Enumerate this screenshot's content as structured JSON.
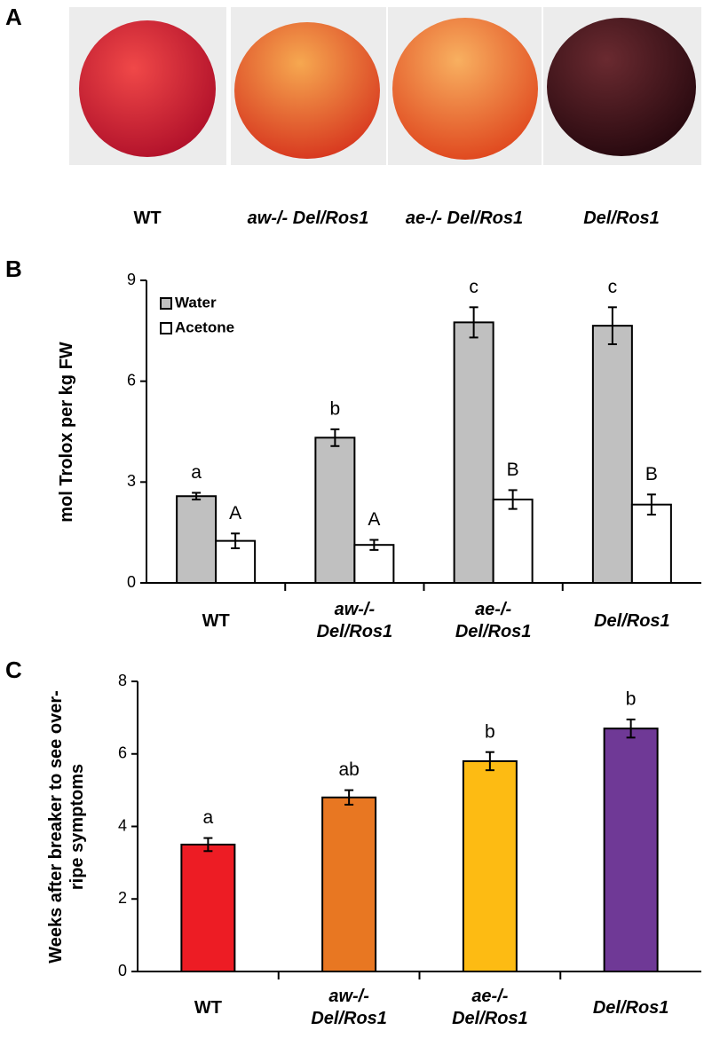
{
  "panel_labels": [
    "A",
    "B",
    "C"
  ],
  "fruit_photos": {
    "labels": [
      "WT",
      "aw-/- Del/Ros1",
      "ae-/- Del/Ros1",
      "Del/Ros1"
    ]
  },
  "chart_data": [
    {
      "type": "bar",
      "ylabel": "mol Trolox per kg FW",
      "categories": [
        "WT",
        "aw-/- Del/Ros1",
        "ae-/- Del/Ros1",
        "Del/Ros1"
      ],
      "series": [
        {
          "name": "Water",
          "color": "#c0c0c0",
          "values": [
            2.58,
            4.32,
            7.75,
            7.65
          ],
          "errors": [
            0.1,
            0.25,
            0.45,
            0.55
          ],
          "labels": [
            "a",
            "b",
            "c",
            "c"
          ]
        },
        {
          "name": "Acetone",
          "color": "#ffffff",
          "values": [
            1.25,
            1.13,
            2.48,
            2.33
          ],
          "errors": [
            0.22,
            0.15,
            0.28,
            0.3
          ],
          "labels": [
            "A",
            "A",
            "B",
            "B"
          ]
        }
      ],
      "ylim": [
        0,
        9
      ],
      "yticks": [
        0,
        3,
        6,
        9
      ],
      "legend": "upper left"
    },
    {
      "type": "bar",
      "ylabel": "Weeks after breaker to see over-ripe symptoms",
      "categories": [
        "WT",
        "aw-/- Del/Ros1",
        "ae-/- Del/Ros1",
        "Del/Ros1"
      ],
      "values": [
        3.5,
        4.8,
        5.8,
        6.7
      ],
      "errors": [
        0.18,
        0.2,
        0.25,
        0.25
      ],
      "labels": [
        "a",
        "ab",
        "b",
        "b"
      ],
      "colors": [
        "#ed1c24",
        "#e87722",
        "#fdbb13",
        "#6f3996"
      ],
      "ylim": [
        0,
        8
      ],
      "yticks": [
        0,
        2,
        4,
        6,
        8
      ]
    }
  ]
}
